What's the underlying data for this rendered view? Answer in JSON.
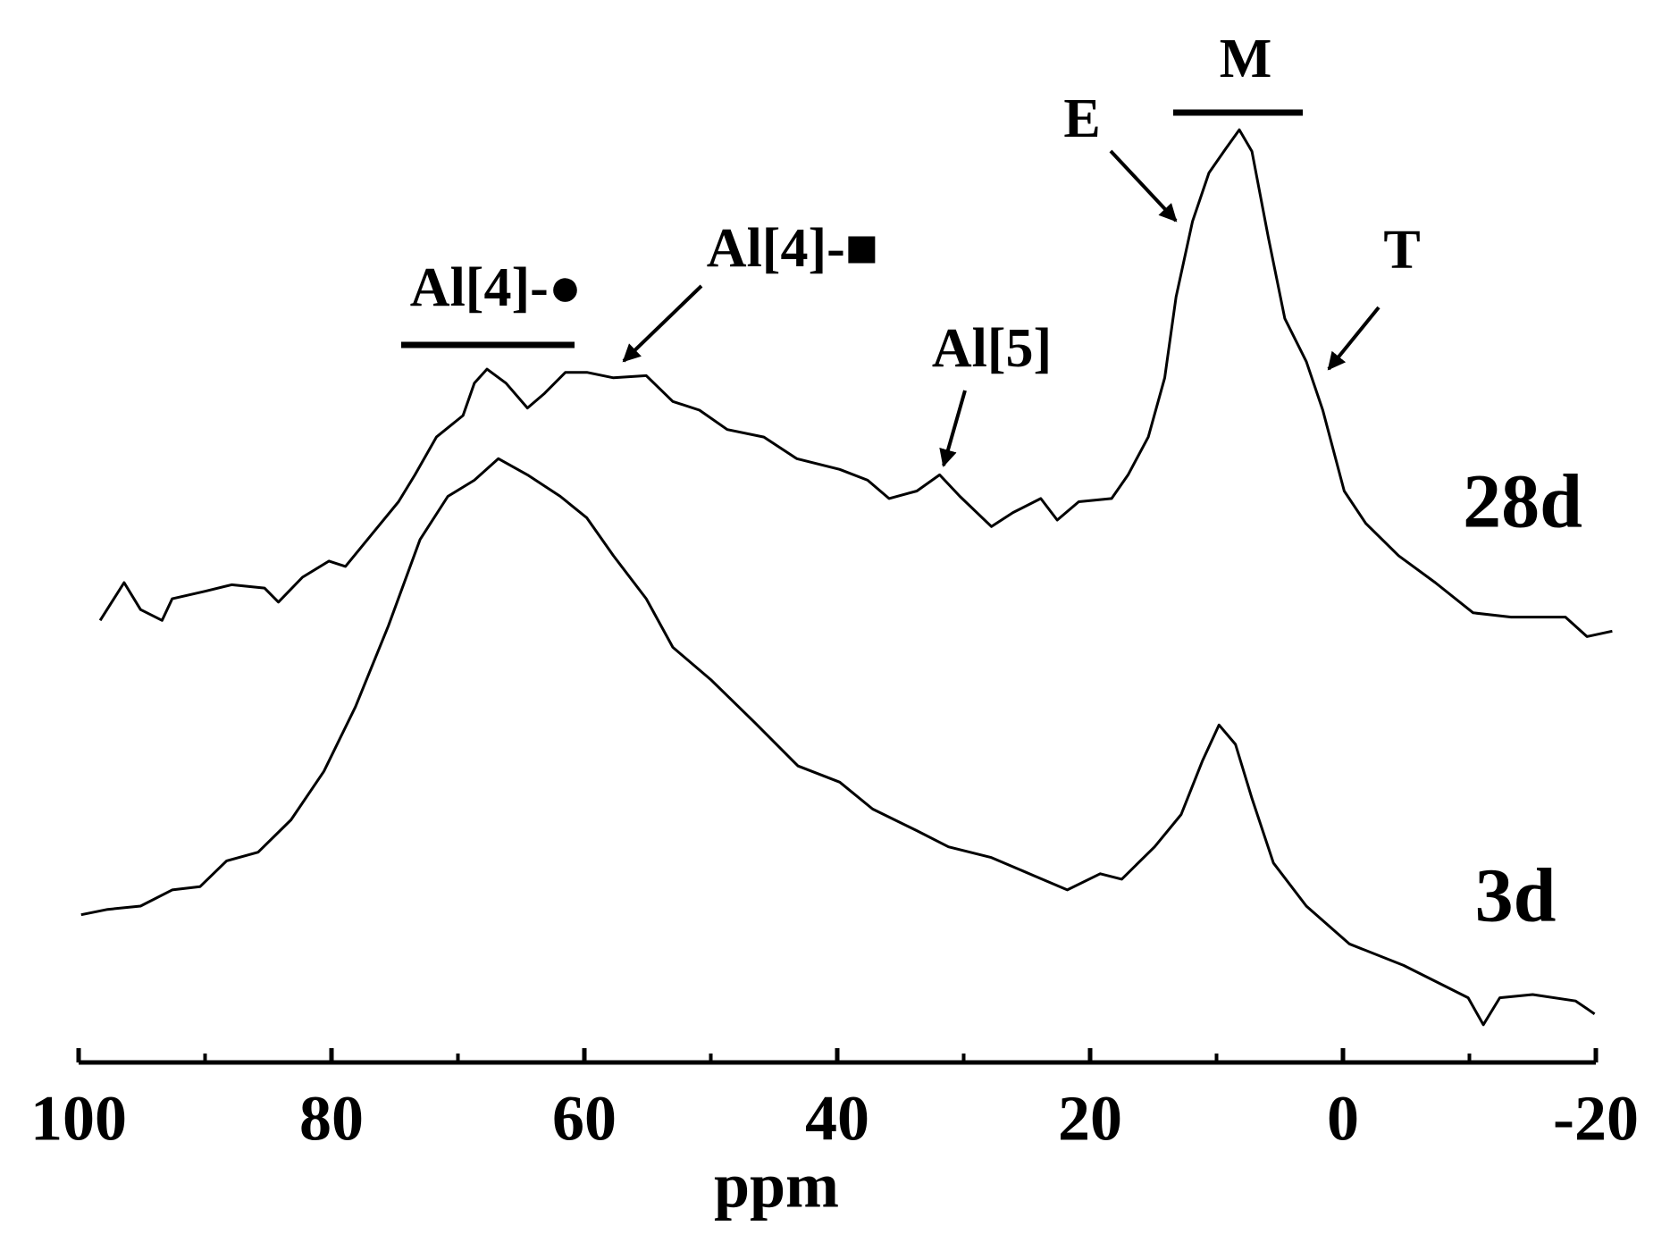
{
  "chart_data": {
    "type": "line",
    "x_label": "ppm",
    "xlim": [
      100,
      -20
    ],
    "ylim": [
      0,
      90
    ],
    "xticks": [
      100,
      80,
      60,
      40,
      20,
      0,
      -20
    ],
    "xminor_ticks": [
      90,
      70,
      50,
      30,
      10,
      -10
    ],
    "color": "#000000",
    "annotations": [
      "M",
      "E",
      "T",
      "Al[4]-●",
      "Al[4]-■",
      "Al[5]"
    ],
    "series": [
      {
        "name": "28d",
        "color": "#000000",
        "x": [
          98.3,
          96.4,
          95.1,
          93.4,
          92.6,
          90,
          87.9,
          85.3,
          84.2,
          82.3,
          80.2,
          78.9,
          76.8,
          74.7,
          73.4,
          71.7,
          69.6,
          68.7,
          67.7,
          66.2,
          64.5,
          63.2,
          61.5,
          59.8,
          57.7,
          55.1,
          53.0,
          50.9,
          48.7,
          45.8,
          43.2,
          39.8,
          37.6,
          35.9,
          33.7,
          31.9,
          30.3,
          27.8,
          26.1,
          23.9,
          22.6,
          20.9,
          18.3,
          17.0,
          15.4,
          14.1,
          13.2,
          11.9,
          10.6,
          9.3,
          8.2,
          7.2,
          5.9,
          4.6,
          2.9,
          1.6,
          -0.1,
          -1.8,
          -4.4,
          -7.3,
          -10.3,
          -13.3,
          -17.6,
          -19.3,
          -21.3
        ],
        "values": [
          41.0,
          44.5,
          42.0,
          41.0,
          43.0,
          43.7,
          44.3,
          44.0,
          42.7,
          45.0,
          46.5,
          46.0,
          49.0,
          52.0,
          54.5,
          58.0,
          60.0,
          63.0,
          64.3,
          63.0,
          60.7,
          62.0,
          64.0,
          64.0,
          63.5,
          63.7,
          61.3,
          60.5,
          58.7,
          58.0,
          56.0,
          55.0,
          54.0,
          52.3,
          53.0,
          54.5,
          52.5,
          49.7,
          51.0,
          52.3,
          50.3,
          52.0,
          52.3,
          54.5,
          58.0,
          63.5,
          71.0,
          78.0,
          82.5,
          84.7,
          86.5,
          84.5,
          76.5,
          69.0,
          65.0,
          60.5,
          53.0,
          50.0,
          47.0,
          44.5,
          41.7,
          41.3,
          41.3,
          39.5,
          40.0
        ]
      },
      {
        "name": "3d",
        "color": "#000000",
        "x": [
          99.8,
          97.7,
          95.1,
          92.6,
          90.4,
          88.3,
          85.8,
          83.2,
          80.6,
          78.1,
          75.5,
          73.0,
          70.8,
          68.7,
          66.8,
          64.5,
          61.9,
          59.8,
          57.7,
          55.1,
          53.0,
          50.0,
          46.5,
          43.1,
          39.8,
          37.2,
          33.7,
          31.2,
          27.8,
          24.4,
          21.8,
          19.2,
          17.5,
          14.9,
          12.8,
          11.1,
          9.8,
          8.5,
          7.2,
          5.5,
          2.9,
          -0.5,
          -4.8,
          -8.2,
          -9.9,
          -11.1,
          -12.4,
          -15.0,
          -18.4,
          -19.9
        ],
        "values": [
          13.7,
          14.2,
          14.5,
          16.0,
          16.3,
          18.7,
          19.5,
          22.5,
          27.0,
          33.0,
          40.5,
          48.5,
          52.5,
          54.0,
          56.0,
          54.5,
          52.5,
          50.5,
          47.0,
          43.0,
          38.5,
          35.5,
          31.5,
          27.5,
          26.0,
          23.5,
          21.5,
          20.0,
          19.0,
          17.3,
          16.0,
          17.5,
          17.0,
          20.0,
          23.0,
          28.0,
          31.3,
          29.5,
          24.5,
          18.5,
          14.5,
          11.0,
          9.0,
          7.0,
          6.0,
          3.5,
          6.0,
          6.3,
          5.7,
          4.5
        ]
      }
    ]
  }
}
